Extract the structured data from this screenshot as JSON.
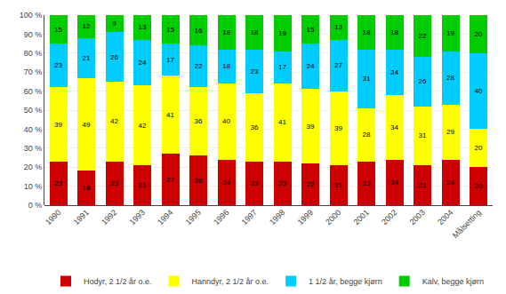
{
  "chart_data": {
    "type": "bar",
    "stacked": true,
    "data_labels": true,
    "grid": true,
    "legend": "bottom",
    "categories": [
      "1990",
      "1991",
      "1992",
      "1993",
      "1994",
      "1995",
      "1996",
      "1997",
      "1998",
      "1999",
      "2000",
      "2001",
      "2002",
      "2003",
      "2004",
      "Målsetting"
    ],
    "series": [
      {
        "name": "Hodyr, 2 1/2 år o.e.",
        "color": "#cc0000",
        "values": [
          23,
          18,
          23,
          21,
          27,
          26,
          24,
          23,
          23,
          22,
          21,
          23,
          24,
          21,
          24,
          20
        ]
      },
      {
        "name": "Hanndyr, 2 1/2 år o.e.",
        "color": "#ffff00",
        "values": [
          39,
          49,
          42,
          42,
          41,
          36,
          40,
          36,
          41,
          39,
          39,
          28,
          34,
          31,
          29,
          20
        ]
      },
      {
        "name": "1 1/2 år, begge kjørn",
        "color": "#00ccff",
        "values": [
          23,
          21,
          26,
          24,
          17,
          22,
          18,
          23,
          17,
          24,
          27,
          31,
          24,
          26,
          28,
          40
        ]
      },
      {
        "name": "Kalv, begge kjørn",
        "color": "#00cc00",
        "values": [
          15,
          12,
          9,
          13,
          15,
          16,
          18,
          18,
          19,
          15,
          13,
          18,
          18,
          22,
          19,
          20
        ]
      }
    ],
    "ylim": [
      0,
      100
    ],
    "yticks": [
      {
        "value": 0,
        "label": "0 %"
      },
      {
        "value": 10,
        "label": "10 %"
      },
      {
        "value": 20,
        "label": "20 %"
      },
      {
        "value": 30,
        "label": "30 %"
      },
      {
        "value": 40,
        "label": "40 %"
      },
      {
        "value": 50,
        "label": "50 %"
      },
      {
        "value": 60,
        "label": "60 %"
      },
      {
        "value": 70,
        "label": "70 %"
      },
      {
        "value": 80,
        "label": "80 %"
      },
      {
        "value": 90,
        "label": "90 %"
      },
      {
        "value": 100,
        "label": "100 %"
      }
    ]
  }
}
